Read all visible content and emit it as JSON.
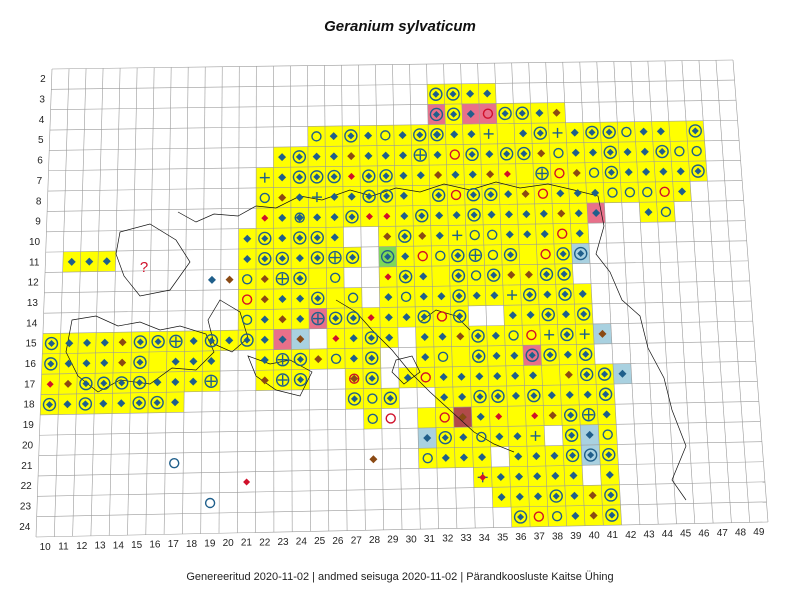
{
  "title": "Geranium sylvaticum",
  "footer": "Genereeritud 2020-11-02  |  andmed seisuga 2020-11-02  |  Pärandkoosluste Kaitse Ühing",
  "grid": {
    "rows": [
      "2",
      "3",
      "4",
      "5",
      "6",
      "7",
      "8",
      "9",
      "10",
      "11",
      "12",
      "13",
      "14",
      "15",
      "16",
      "17",
      "18",
      "19",
      "20",
      "21",
      "22",
      "23",
      "24"
    ],
    "cols": [
      "10",
      "11",
      "12",
      "13",
      "14",
      "15",
      "16",
      "17",
      "18",
      "19",
      "20",
      "21",
      "22",
      "23",
      "24",
      "25",
      "26",
      "27",
      "28",
      "29",
      "30",
      "31",
      "32",
      "33",
      "34",
      "35",
      "36",
      "37",
      "38",
      "39",
      "40",
      "41",
      "42",
      "43",
      "44",
      "45",
      "46",
      "47",
      "48",
      "49"
    ]
  },
  "colors": {
    "grid_line": "#9a9a9a",
    "occupied": "#ffff00",
    "marker_blue": "#1f5f8b",
    "marker_brown": "#8b4a14",
    "marker_red": "#d0102a",
    "pink": "#e8708a",
    "dark_red": "#b24a4a",
    "light_blue": "#a9d1e0",
    "green": "#7fd857",
    "coast": "#111111"
  },
  "question_mark": "?"
}
